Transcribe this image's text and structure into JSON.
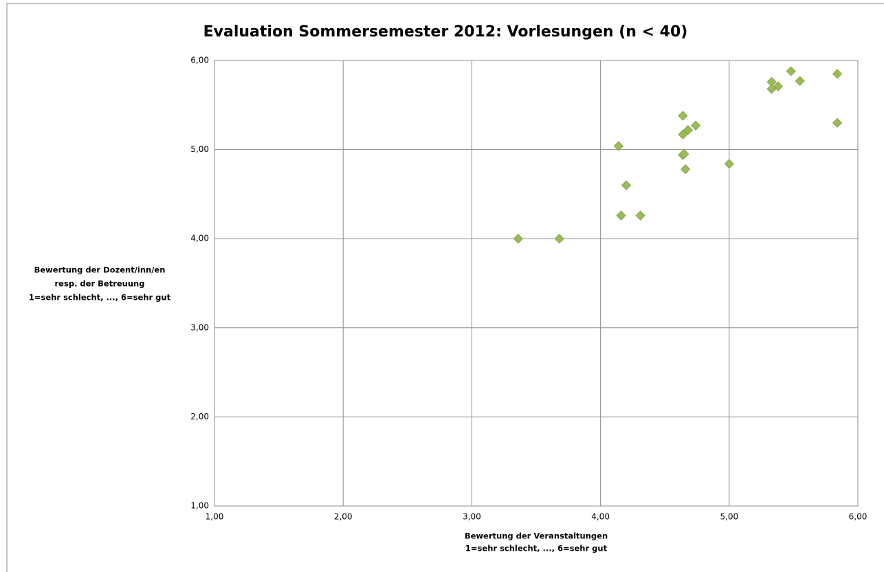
{
  "chart_data": {
    "type": "scatter",
    "title": "Evaluation Sommersemester 2012: Vorlesungen (n < 40)",
    "x_label": [
      "Bewertung der Veranstaltungen",
      "1=sehr schlecht, ..., 6=sehr gut"
    ],
    "y_label": [
      "Bewertung der Dozent/inn/en",
      "resp. der Betreuung",
      "1=sehr schlecht, ..., 6=sehr gut"
    ],
    "xlim": [
      1,
      6
    ],
    "ylim": [
      1,
      6
    ],
    "xticks": [
      {
        "value": 1,
        "label": "1,00"
      },
      {
        "value": 2,
        "label": "2,00"
      },
      {
        "value": 3,
        "label": "3,00"
      },
      {
        "value": 4,
        "label": "4,00"
      },
      {
        "value": 5,
        "label": "5,00"
      },
      {
        "value": 6,
        "label": "6,00"
      }
    ],
    "yticks": [
      {
        "value": 1,
        "label": "1,00"
      },
      {
        "value": 2,
        "label": "2,00"
      },
      {
        "value": 3,
        "label": "3,00"
      },
      {
        "value": 4,
        "label": "4,00"
      },
      {
        "value": 5,
        "label": "5,00"
      },
      {
        "value": 6,
        "label": "6,00"
      }
    ],
    "grid": true,
    "series": [
      {
        "color": "#9bbb59",
        "x": [
          3.36,
          3.68,
          4.14,
          4.16,
          4.2,
          4.31,
          4.64,
          4.65,
          4.64,
          4.66,
          4.64,
          4.68,
          4.74,
          5.0,
          5.33,
          5.33,
          5.38,
          5.48,
          5.55,
          5.84,
          5.84
        ],
        "values": [
          4.0,
          4.0,
          5.04,
          4.26,
          4.6,
          4.26,
          4.94,
          4.95,
          5.38,
          4.78,
          5.17,
          5.22,
          5.27,
          4.84,
          5.76,
          5.68,
          5.71,
          5.88,
          5.77,
          5.85,
          5.3
        ]
      }
    ]
  }
}
